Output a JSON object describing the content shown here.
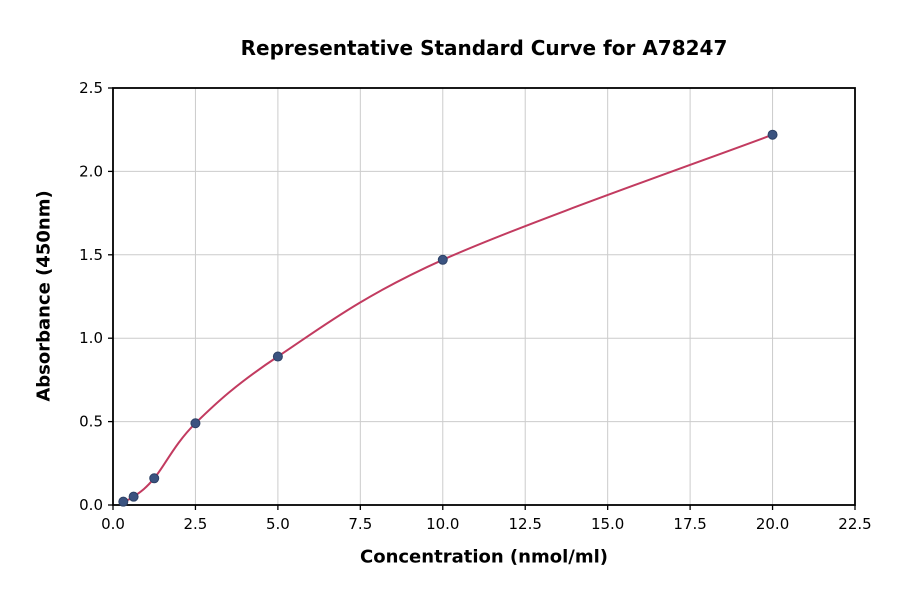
{
  "chart_data": {
    "type": "scatter",
    "title": "Representative Standard Curve for A78247",
    "xlabel": "Concentration (nmol/ml)",
    "ylabel": "Absorbance (450nm)",
    "xlim": [
      0,
      22.5
    ],
    "ylim": [
      0,
      2.5
    ],
    "grid": true,
    "legend": false,
    "x_ticks": [
      0,
      2.5,
      5,
      7.5,
      10,
      12.5,
      15,
      17.5,
      20,
      22.5
    ],
    "x_tick_labels": [
      "0.0",
      "2.5",
      "5.0",
      "7.5",
      "10.0",
      "12.5",
      "15.0",
      "17.5",
      "20.0",
      "22.5"
    ],
    "y_ticks": [
      0,
      0.5,
      1,
      1.5,
      2,
      2.5
    ],
    "y_tick_labels": [
      "0.0",
      "0.5",
      "1.0",
      "1.5",
      "2.0",
      "2.5"
    ],
    "series": [
      {
        "name": "standard-points",
        "type": "scatter",
        "x": [
          0.3125,
          0.625,
          1.25,
          2.5,
          5,
          10,
          20
        ],
        "y": [
          0.02,
          0.05,
          0.16,
          0.49,
          0.89,
          1.47,
          2.22
        ]
      },
      {
        "name": "fitted-curve",
        "type": "line",
        "description": "smooth saturation fit drawn through the standard points"
      }
    ],
    "colors": {
      "points": "#3b5380",
      "points_edge": "#2d4166",
      "curve": "#c23b60",
      "grid": "#cccccc",
      "axis": "#000000",
      "text": "#000000"
    }
  }
}
